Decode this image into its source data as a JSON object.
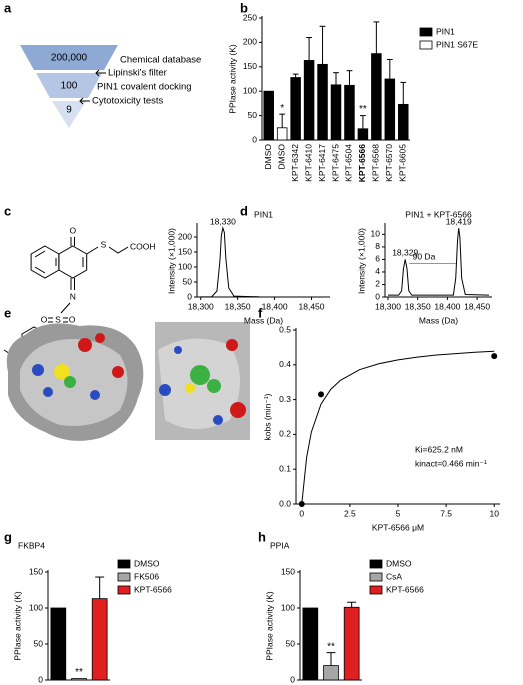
{
  "panel_labels": [
    "a",
    "b",
    "c",
    "d",
    "e",
    "f",
    "g",
    "h"
  ],
  "funnel": {
    "levels": [
      "200,000",
      "100",
      "9"
    ],
    "steps": [
      "Chemical database",
      "Lipinski's filter",
      "PIN1 covalent docking",
      "Cytotoxicity tests"
    ]
  },
  "structure": {
    "atoms": [
      "O",
      "S",
      "COOH",
      "N",
      "S",
      "O",
      "O"
    ]
  },
  "chart_data": [
    {
      "type": "bar",
      "y_label": "PPIase activity (K)",
      "categories": [
        "DMSO",
        "DMSO",
        "KPT-6342",
        "KPT-6410",
        "KPT-6417",
        "KPT-6475",
        "KPT-6504",
        "KPT-6566",
        "KPT-6568",
        "KPT-6570",
        "KPT-6605"
      ],
      "series": [
        {
          "name": "PIN1",
          "color": "#000000",
          "values": [
            100,
            null,
            128,
            163,
            155,
            113,
            112,
            23,
            177,
            125,
            73
          ],
          "errors": [
            null,
            null,
            7,
            47,
            78,
            25,
            30,
            27,
            65,
            40,
            45
          ]
        },
        {
          "name": "PIN1 S67E",
          "color": "#ffffff",
          "values": [
            null,
            25,
            null,
            null,
            null,
            null,
            null,
            null,
            null,
            null,
            null
          ],
          "errors": [
            null,
            28,
            null,
            null,
            null,
            null,
            null,
            null,
            null,
            null,
            null
          ]
        }
      ],
      "annotations": [
        null,
        "*",
        null,
        null,
        null,
        null,
        null,
        "**",
        null,
        null,
        null
      ],
      "highlight_index": 7,
      "ylim": [
        0,
        250
      ],
      "yticks": [
        0,
        50,
        100,
        150,
        200,
        250
      ],
      "legend": "upper right",
      "xtick_labels": true
    },
    {
      "type": "line",
      "title": "PIN1",
      "x_label": "Mass (Da)",
      "y_label": "Intensity (×1,000)",
      "x": [
        18300,
        18315,
        18322,
        18326,
        18328,
        18330,
        18332,
        18334,
        18338,
        18345,
        18380
      ],
      "values": [
        0.5,
        1,
        20,
        120,
        205,
        230,
        215,
        130,
        30,
        3,
        0.5
      ],
      "annotations": [
        {
          "text": "18,330",
          "x": 18330,
          "y": 230
        }
      ],
      "xlim": [
        18295,
        18475
      ],
      "xticks": [
        {
          "value": 18300,
          "label": "18,300"
        },
        {
          "value": 18350,
          "label": "18,350"
        },
        {
          "value": 18400,
          "label": "18,400"
        },
        {
          "value": 18450,
          "label": "18,450"
        }
      ],
      "ylim": [
        0,
        240
      ],
      "yticks": [
        0,
        50,
        100,
        150,
        200
      ]
    },
    {
      "type": "line",
      "title": "PIN1 + KPT-6566",
      "x_label": "Mass (Da)",
      "y_label": "Intensity (×1,000)",
      "x": [
        18300,
        18318,
        18323,
        18326,
        18329,
        18332,
        18335,
        18340,
        18410,
        18414,
        18417,
        18419,
        18421,
        18424,
        18430,
        18470
      ],
      "values": [
        0.3,
        0.3,
        1,
        4.5,
        6,
        4.5,
        1,
        0.3,
        0.3,
        3,
        9,
        11,
        9.5,
        3,
        0.4,
        0.3
      ],
      "annotations": [
        {
          "text": "18,329",
          "x": 18329,
          "y": 6
        },
        {
          "text": "18,419",
          "x": 18419,
          "y": 11
        }
      ],
      "span": {
        "label": "90 Da",
        "from": 18329,
        "to": 18419,
        "y": 6
      },
      "xlim": [
        18295,
        18475
      ],
      "xticks": [
        {
          "value": 18300,
          "label": "18,300"
        },
        {
          "value": 18350,
          "label": "18,350"
        },
        {
          "value": 18400,
          "label": "18,400"
        },
        {
          "value": 18450,
          "label": "18,450"
        }
      ],
      "ylim": [
        0,
        11.5
      ],
      "yticks": [
        0,
        2,
        4,
        6,
        8,
        10
      ]
    },
    {
      "type": "scatter",
      "x_label": "KPT-6566 μM",
      "y_label": "kobs (min⁻¹)",
      "x": [
        0,
        1,
        10
      ],
      "values": [
        0,
        0.315,
        0.425
      ],
      "fit": {
        "x": [
          0,
          0.25,
          0.5,
          1,
          1.5,
          2,
          3,
          4,
          5,
          6,
          7,
          8,
          9,
          10
        ],
        "values": [
          0,
          0.133,
          0.207,
          0.287,
          0.329,
          0.355,
          0.386,
          0.403,
          0.414,
          0.422,
          0.428,
          0.432,
          0.436,
          0.439
        ]
      },
      "annotations": [
        "Ki=625.2 nM",
        "kinact=0.466 min⁻¹"
      ],
      "xlim": [
        -0.3,
        10.3
      ],
      "xticks": [
        0,
        2.5,
        5,
        7.5,
        10
      ],
      "ylim": [
        0,
        0.5
      ],
      "yticks": [
        {
          "value": 0,
          "label": "0.0"
        },
        0.1,
        0.2,
        0.3,
        0.4,
        0.5
      ]
    },
    {
      "type": "bar",
      "title": "FKBP4",
      "y_label": "PPIase activity (K)",
      "categories": [
        "DMSO",
        "FK506",
        "KPT-6566"
      ],
      "colors": [
        "#000000",
        "#a6a6a6",
        "#e02020"
      ],
      "values": [
        100,
        2,
        113
      ],
      "errors": [
        null,
        null,
        30
      ],
      "annotations": [
        null,
        "**",
        null
      ],
      "ylim": [
        0,
        150
      ],
      "yticks": [
        0,
        50,
        100,
        150
      ],
      "legend": "upper right",
      "xtick_labels": false
    },
    {
      "type": "bar",
      "title": "PPIA",
      "y_label": "PPIase activity (K)",
      "categories": [
        "DMSO",
        "CsA",
        "KPT-6566"
      ],
      "colors": [
        "#000000",
        "#a6a6a6",
        "#e02020"
      ],
      "values": [
        100,
        20,
        101
      ],
      "errors": [
        null,
        18,
        7
      ],
      "annotations": [
        null,
        "**",
        null
      ],
      "ylim": [
        0,
        150
      ],
      "yticks": [
        0,
        50,
        100,
        150
      ],
      "legend": "upper right",
      "xtick_labels": false
    }
  ]
}
